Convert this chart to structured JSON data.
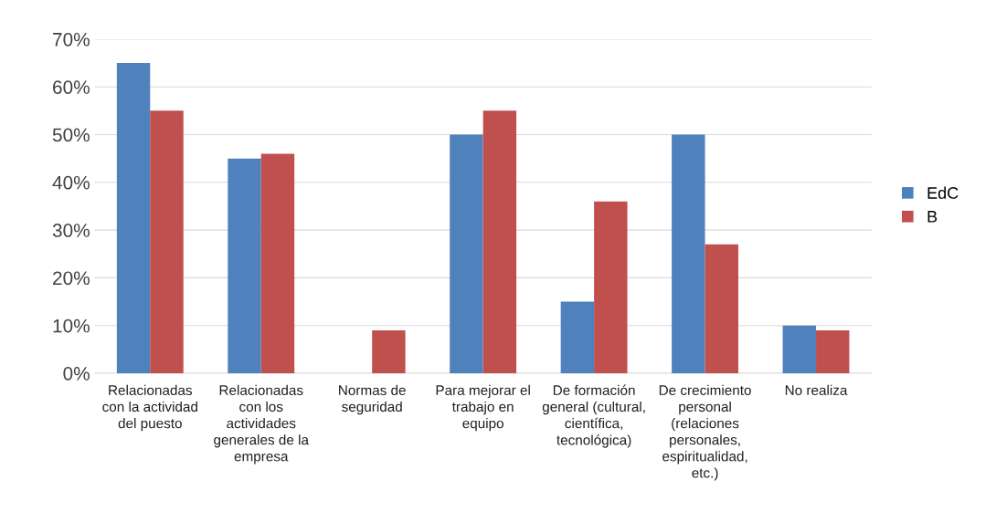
{
  "chart_data": {
    "type": "bar",
    "categories": [
      "Relacionadas con la actividad del puesto",
      "Relacionadas con los actividades generales de la empresa",
      "Normas de seguridad",
      "Para mejorar el trabajo en equipo",
      "De formación general (cultural, científica, tecnológica)",
      "De crecimiento personal (relaciones personales, espiritualidad, etc.)",
      "No realiza"
    ],
    "series": [
      {
        "name": "EdC",
        "color": "#4f81bd",
        "values": [
          65,
          45,
          0,
          50,
          15,
          50,
          10
        ]
      },
      {
        "name": "B",
        "color": "#c0504d",
        "values": [
          55,
          46,
          9,
          55,
          36,
          27,
          9
        ]
      }
    ],
    "ylim": [
      0,
      70
    ],
    "yticks": [
      {
        "value": 0,
        "label": "0%"
      },
      {
        "value": 10,
        "label": "10%"
      },
      {
        "value": 20,
        "label": "20%"
      },
      {
        "value": 30,
        "label": "30%"
      },
      {
        "value": 40,
        "label": "40%"
      },
      {
        "value": 50,
        "label": "50%"
      },
      {
        "value": 60,
        "label": "60%"
      },
      {
        "value": 70,
        "label": "70%"
      }
    ],
    "grid": "y",
    "legend": "right"
  }
}
